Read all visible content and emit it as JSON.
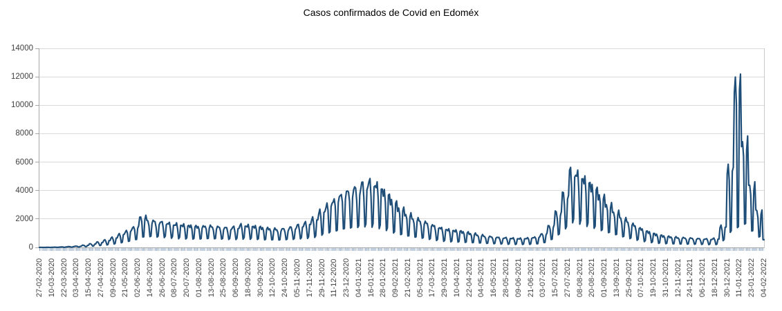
{
  "chart_data": {
    "type": "line",
    "title": "Casos confirmados de Covid en Edoméx",
    "xlabel": "",
    "ylabel": "",
    "ylim": [
      0,
      14000
    ],
    "yticks": [
      0,
      2000,
      4000,
      6000,
      8000,
      10000,
      12000,
      14000
    ],
    "grid": "horizontal",
    "legend": "none",
    "x_start_date": "27-02-2020",
    "x_end_date": "04-02-2022",
    "num_days": 709,
    "x_tick_interval_days": 12,
    "x_tick_labels": [
      "27-02-2020",
      "10-03-2020",
      "22-03-2020",
      "03-04-2020",
      "15-04-2020",
      "27-04-2020",
      "09-05-2020",
      "21-05-2020",
      "02-06-2020",
      "14-06-2020",
      "26-06-2020",
      "08-07-2020",
      "20-07-2020",
      "01-08-2020",
      "13-08-2020",
      "25-08-2020",
      "06-09-2020",
      "18-09-2020",
      "30-09-2020",
      "12-10-2020",
      "24-10-2020",
      "05-11-2020",
      "17-11-2020",
      "29-11-2020",
      "11-12-2020",
      "23-12-2020",
      "04-01-2021",
      "16-01-2021",
      "28-01-2021",
      "09-02-2021",
      "21-02-2021",
      "05-03-2021",
      "17-03-2021",
      "29-03-2021",
      "10-04-2021",
      "22-04-2021",
      "04-05-2021",
      "16-05-2021",
      "28-05-2021",
      "09-06-2021",
      "21-06-2021",
      "03-07-2021",
      "15-07-2021",
      "27-07-2021",
      "08-08-2021",
      "20-08-2021",
      "01-09-2021",
      "13-09-2021",
      "25-09-2021",
      "07-10-2021",
      "19-10-2021",
      "31-10-2021",
      "12-11-2021",
      "24-11-2021",
      "06-12-2021",
      "18-12-2021",
      "30-12-2021",
      "11-01-2022",
      "23-01-2022",
      "04-02-2022"
    ],
    "weekday_pattern": [
      {
        "day": "Thu",
        "base": "high",
        "mult": 0.95
      },
      {
        "day": "Fri",
        "base": "high",
        "mult": 1.0
      },
      {
        "day": "Sat",
        "base": "high",
        "mult": 0.8
      },
      {
        "day": "Sun",
        "base": "low",
        "mult": 1.0
      },
      {
        "day": "Mon",
        "base": "low",
        "mult": 1.1
      },
      {
        "day": "Tue",
        "base": "high",
        "mult": 0.9
      },
      {
        "day": "Wed",
        "base": "high",
        "mult": 0.97
      }
    ],
    "weekly_envelope_high_low": [
      [
        4,
        1
      ],
      [
        8,
        2
      ],
      [
        18,
        5
      ],
      [
        35,
        10
      ],
      [
        60,
        20
      ],
      [
        90,
        30
      ],
      [
        160,
        55
      ],
      [
        260,
        90
      ],
      [
        380,
        130
      ],
      [
        520,
        180
      ],
      [
        700,
        250
      ],
      [
        950,
        340
      ],
      [
        1200,
        430
      ],
      [
        1500,
        540
      ],
      [
        2250,
        700
      ],
      [
        1950,
        720
      ],
      [
        1850,
        700
      ],
      [
        1800,
        690
      ],
      [
        1700,
        660
      ],
      [
        1650,
        640
      ],
      [
        1600,
        620
      ],
      [
        1550,
        600
      ],
      [
        1500,
        590
      ],
      [
        1550,
        600
      ],
      [
        1500,
        580
      ],
      [
        1450,
        560
      ],
      [
        1400,
        550
      ],
      [
        1450,
        560
      ],
      [
        1600,
        610
      ],
      [
        1550,
        600
      ],
      [
        1500,
        580
      ],
      [
        1400,
        540
      ],
      [
        1350,
        520
      ],
      [
        1300,
        500
      ],
      [
        1350,
        520
      ],
      [
        1450,
        550
      ],
      [
        1600,
        600
      ],
      [
        1750,
        650
      ],
      [
        2050,
        740
      ],
      [
        2600,
        900
      ],
      [
        3100,
        1050
      ],
      [
        3500,
        1150
      ],
      [
        3900,
        1250
      ],
      [
        4100,
        1300
      ],
      [
        4300,
        1350
      ],
      [
        4600,
        1430
      ],
      [
        4700,
        1450
      ],
      [
        4400,
        1380
      ],
      [
        3900,
        1250
      ],
      [
        3300,
        1050
      ],
      [
        2800,
        900
      ],
      [
        2400,
        780
      ],
      [
        2100,
        690
      ],
      [
        1900,
        620
      ],
      [
        1700,
        550
      ],
      [
        1500,
        490
      ],
      [
        1350,
        440
      ],
      [
        1250,
        410
      ],
      [
        1200,
        390
      ],
      [
        1100,
        360
      ],
      [
        1000,
        330
      ],
      [
        900,
        300
      ],
      [
        800,
        270
      ],
      [
        750,
        250
      ],
      [
        700,
        235
      ],
      [
        680,
        225
      ],
      [
        650,
        215
      ],
      [
        640,
        215
      ],
      [
        680,
        225
      ],
      [
        750,
        250
      ],
      [
        1000,
        330
      ],
      [
        1600,
        530
      ],
      [
        2600,
        850
      ],
      [
        3900,
        1280
      ],
      [
        5500,
        1750
      ],
      [
        5200,
        1700
      ],
      [
        4800,
        1550
      ],
      [
        4300,
        1400
      ],
      [
        3700,
        1200
      ],
      [
        3100,
        1020
      ],
      [
        2600,
        860
      ],
      [
        2150,
        710
      ],
      [
        1800,
        600
      ],
      [
        1500,
        500
      ],
      [
        1250,
        420
      ],
      [
        1050,
        350
      ],
      [
        900,
        300
      ],
      [
        800,
        270
      ],
      [
        750,
        250
      ],
      [
        700,
        235
      ],
      [
        680,
        225
      ],
      [
        650,
        215
      ],
      [
        620,
        205
      ],
      [
        600,
        200
      ],
      [
        630,
        210
      ],
      [
        1500,
        500
      ],
      [
        5700,
        1100
      ],
      [
        12050,
        1400
      ],
      [
        7700,
        1600
      ],
      [
        4600,
        1100
      ],
      [
        2700,
        700
      ],
      [
        550,
        300
      ]
    ],
    "colors": {
      "line": "#1F4E79",
      "gridline": "#d9d9d9",
      "axis": "#a6a6a6",
      "tick_comb": "#8aa3c2",
      "label_text": "#404040",
      "title_text": "#000000"
    }
  }
}
